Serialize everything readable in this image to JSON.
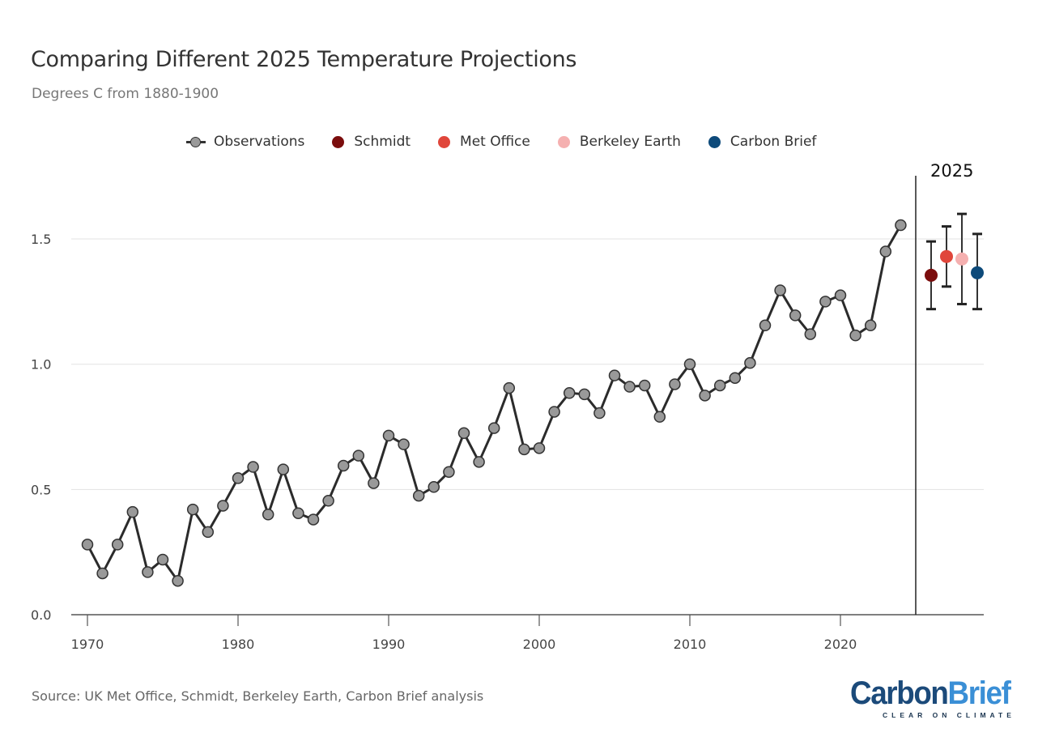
{
  "header": {
    "title": "Comparing Different 2025 Temperature Projections",
    "subtitle": "Degrees C from 1880-1900"
  },
  "legend": {
    "items": [
      {
        "label": "Observations",
        "color": "#999999",
        "kind": "line-marker"
      },
      {
        "label": "Schmidt",
        "color": "#7b0d0d",
        "kind": "dot"
      },
      {
        "label": "Met Office",
        "color": "#e0463b",
        "kind": "dot"
      },
      {
        "label": "Berkeley Earth",
        "color": "#f5b0b0",
        "kind": "dot"
      },
      {
        "label": "Carbon Brief",
        "color": "#0d4a7a",
        "kind": "dot"
      }
    ]
  },
  "footer": {
    "source": "Source: UK Met Office, Schmidt, Berkeley Earth, Carbon Brief analysis",
    "logo_part1": "Carbon",
    "logo_part2": "Brief",
    "logo_tagline": "CLEAR ON CLIMATE"
  },
  "chart_data": {
    "type": "line",
    "title": "Comparing Different 2025 Temperature Projections",
    "subtitle": "Degrees C from 1880-1900",
    "xlabel": "",
    "ylabel": "Degrees C from 1880-1900",
    "xlim": [
      1969,
      2029
    ],
    "ylim": [
      0,
      1.75
    ],
    "x_ticks": [
      1970,
      1980,
      1990,
      2000,
      2010,
      2020
    ],
    "y_ticks": [
      0.0,
      0.5,
      1.0,
      1.5
    ],
    "y_tick_labels": [
      "0.0",
      "0.5",
      "1.0",
      "1.5"
    ],
    "grid": "horizontal",
    "legend_position": "top",
    "divider": {
      "x": 2025,
      "label": "2025"
    },
    "series": [
      {
        "name": "Observations",
        "color": "#999999",
        "line_color": "#2b2b2b",
        "x": [
          1970,
          1971,
          1972,
          1973,
          1974,
          1975,
          1976,
          1977,
          1978,
          1979,
          1980,
          1981,
          1982,
          1983,
          1984,
          1985,
          1986,
          1987,
          1988,
          1989,
          1990,
          1991,
          1992,
          1993,
          1994,
          1995,
          1996,
          1997,
          1998,
          1999,
          2000,
          2001,
          2002,
          2003,
          2004,
          2005,
          2006,
          2007,
          2008,
          2009,
          2010,
          2011,
          2012,
          2013,
          2014,
          2015,
          2016,
          2017,
          2018,
          2019,
          2020,
          2021,
          2022,
          2023,
          2024
        ],
        "values": [
          0.28,
          0.165,
          0.28,
          0.41,
          0.17,
          0.22,
          0.135,
          0.42,
          0.33,
          0.435,
          0.545,
          0.59,
          0.4,
          0.58,
          0.405,
          0.38,
          0.455,
          0.595,
          0.635,
          0.525,
          0.715,
          0.68,
          0.475,
          0.51,
          0.57,
          0.725,
          0.61,
          0.745,
          0.905,
          0.66,
          0.665,
          0.81,
          0.885,
          0.88,
          0.805,
          0.955,
          0.91,
          0.915,
          0.79,
          0.92,
          1.0,
          0.875,
          0.915,
          0.945,
          1.005,
          1.155,
          1.295,
          1.195,
          1.12,
          1.25,
          1.275,
          1.115,
          1.155,
          1.45,
          1.555
        ]
      }
    ],
    "projections": [
      {
        "name": "Schmidt",
        "color": "#7b0d0d",
        "x": 2026.0,
        "value": 1.355,
        "low": 1.22,
        "high": 1.49
      },
      {
        "name": "Met Office",
        "color": "#e0463b",
        "x": 2027.0,
        "value": 1.43,
        "low": 1.31,
        "high": 1.55
      },
      {
        "name": "Berkeley Earth",
        "color": "#f5b0b0",
        "x": 2028.0,
        "value": 1.42,
        "low": 1.24,
        "high": 1.6
      },
      {
        "name": "Carbon Brief",
        "color": "#0d4a7a",
        "x": 2029.0,
        "value": 1.365,
        "low": 1.22,
        "high": 1.52
      }
    ]
  }
}
